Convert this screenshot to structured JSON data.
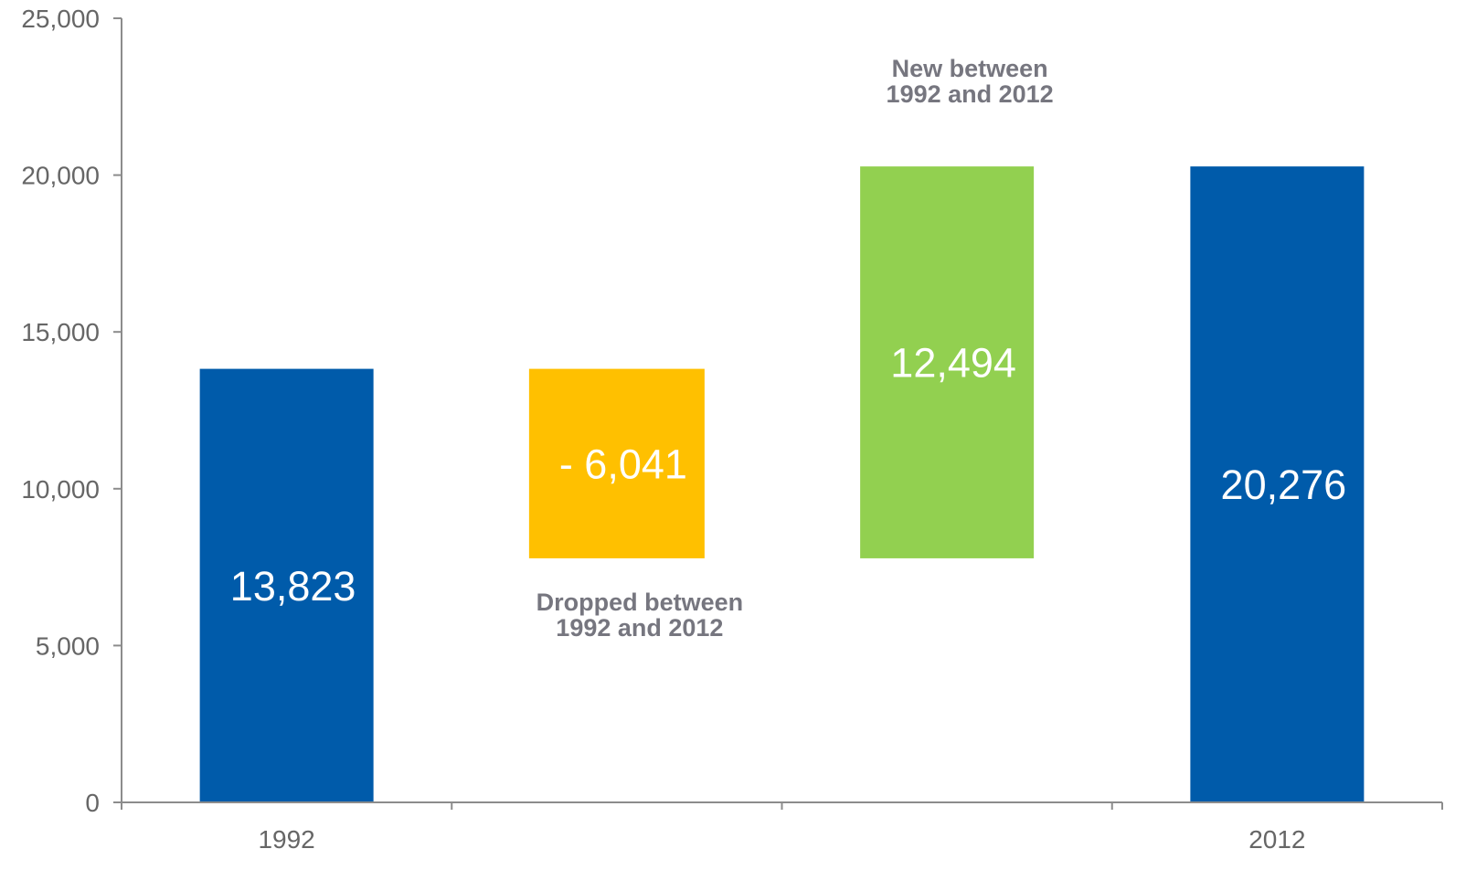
{
  "chart_data": {
    "type": "bar",
    "subtype": "waterfall",
    "categories": [
      "1992",
      "",
      "",
      "2012"
    ],
    "bars": [
      {
        "start": 0,
        "end": 13823,
        "label": "13,823",
        "color": "#005BAA"
      },
      {
        "start": 7782,
        "end": 13823,
        "label": "- 6,041",
        "color": "#FFC000"
      },
      {
        "start": 7782,
        "end": 20276,
        "label": "12,494",
        "color": "#92D050"
      },
      {
        "start": 0,
        "end": 20276,
        "label": "20,276",
        "color": "#005BAA"
      }
    ],
    "annotations": [
      {
        "lines": [
          "Dropped between",
          "1992 and 2012"
        ],
        "bar": 1,
        "placement": "below"
      },
      {
        "lines": [
          "New between",
          "1992 and 2012"
        ],
        "bar": 2,
        "placement": "above"
      }
    ],
    "ylim": [
      0,
      25000
    ],
    "yticks": [
      0,
      5000,
      10000,
      15000,
      20000,
      25000
    ],
    "ytick_labels": [
      "0",
      "5,000",
      "10,000",
      "15,000",
      "20,000",
      "25,000"
    ],
    "title": "",
    "xlabel": "",
    "ylabel": "",
    "grid": false,
    "legend": "none"
  }
}
